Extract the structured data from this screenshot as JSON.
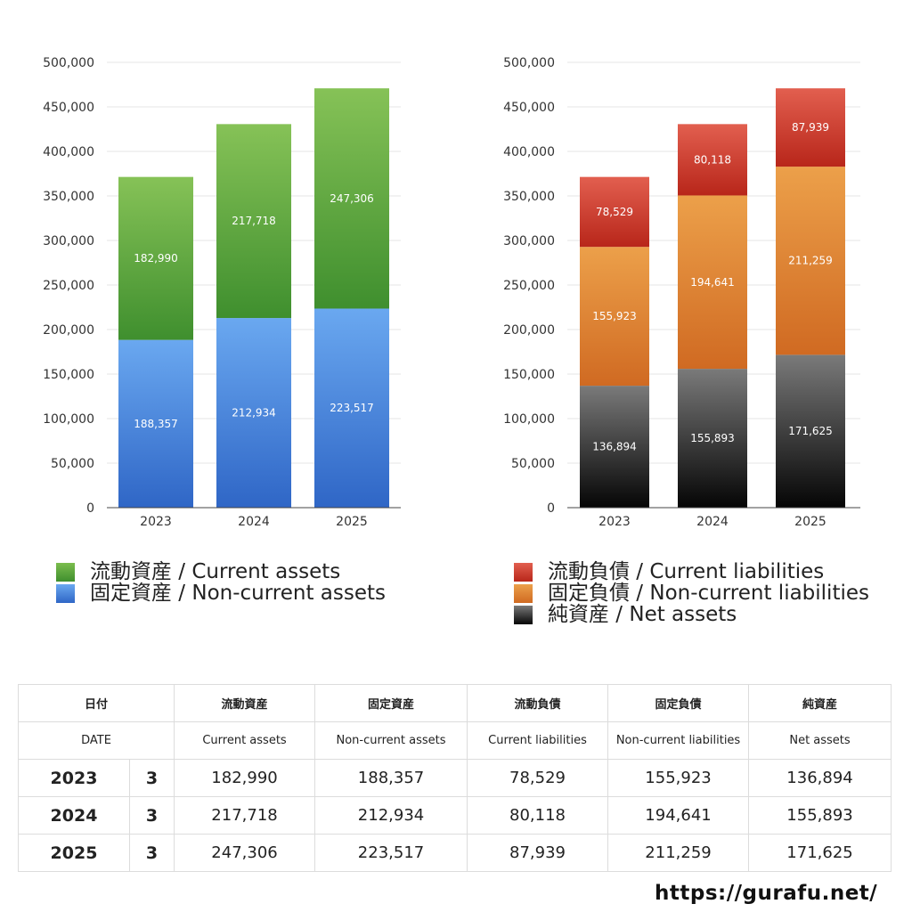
{
  "chart_data": [
    {
      "type": "bar",
      "stacked": true,
      "categories": [
        "2023",
        "2024",
        "2025"
      ],
      "ylim": [
        0,
        500000
      ],
      "yticks": [
        "0",
        "50,000",
        "100,000",
        "150,000",
        "200,000",
        "250,000",
        "300,000",
        "350,000",
        "400,000",
        "450,000",
        "500,000"
      ],
      "grid": true,
      "series": [
        {
          "name": "固定資産 / Non-current assets",
          "values": [
            188357,
            212934,
            223517
          ],
          "labels": [
            "188,357",
            "212,934",
            "223,517"
          ],
          "color_top": "#6aa8f0",
          "color_bottom": "#2f66c6"
        },
        {
          "name": "流動資産 / Current assets",
          "values": [
            182990,
            217718,
            247306
          ],
          "labels": [
            "182,990",
            "217,718",
            "247,306"
          ],
          "color_top": "#86c257",
          "color_bottom": "#3f8f2e"
        }
      ]
    },
    {
      "type": "bar",
      "stacked": true,
      "categories": [
        "2023",
        "2024",
        "2025"
      ],
      "ylim": [
        0,
        500000
      ],
      "yticks": [
        "0",
        "50,000",
        "100,000",
        "150,000",
        "200,000",
        "250,000",
        "300,000",
        "350,000",
        "400,000",
        "450,000",
        "500,000"
      ],
      "grid": true,
      "series": [
        {
          "name": "純資産 / Net assets",
          "values": [
            136894,
            155893,
            171625
          ],
          "labels": [
            "136,894",
            "155,893",
            "171,625"
          ],
          "color_top": "#7a7a7a",
          "color_bottom": "#050505"
        },
        {
          "name": "固定負債 / Non-current liabilities",
          "values": [
            155923,
            194641,
            211259
          ],
          "labels": [
            "155,923",
            "194,641",
            "211,259"
          ],
          "color_top": "#eca04a",
          "color_bottom": "#d06a22"
        },
        {
          "name": "流動負債 / Current liabilities",
          "values": [
            78529,
            80118,
            87939
          ],
          "labels": [
            "78,529",
            "80,118",
            "87,939"
          ],
          "color_top": "#e25f4f",
          "color_bottom": "#b8261a"
        }
      ]
    }
  ],
  "legend_left": [
    {
      "label": "流動資産 / Current assets",
      "color": "#5aa83a"
    },
    {
      "label": "固定資産 / Non-current assets",
      "color": "#4a88e0"
    }
  ],
  "legend_right": [
    {
      "label": "流動負債 / Current liabilities",
      "color": "#d2402f"
    },
    {
      "label": "固定負債 / Non-current liabilities",
      "color": "#e3882f"
    },
    {
      "label": "純資産 / Net assets",
      "color": "#222222"
    }
  ],
  "table": {
    "header_jp": [
      "日付",
      "流動資産",
      "固定資産",
      "流動負債",
      "固定負債",
      "純資産"
    ],
    "header_en": [
      "DATE",
      "Current assets",
      "Non-current assets",
      "Current liabilities",
      "Non-current liabilities",
      "Net assets"
    ],
    "rows": [
      {
        "year": "2023",
        "month": "3",
        "cells": [
          "182,990",
          "188,357",
          "78,529",
          "155,923",
          "136,894"
        ]
      },
      {
        "year": "2024",
        "month": "3",
        "cells": [
          "217,718",
          "212,934",
          "80,118",
          "194,641",
          "155,893"
        ]
      },
      {
        "year": "2025",
        "month": "3",
        "cells": [
          "247,306",
          "223,517",
          "87,939",
          "211,259",
          "171,625"
        ]
      }
    ]
  },
  "site_url": "https://gurafu.net/"
}
